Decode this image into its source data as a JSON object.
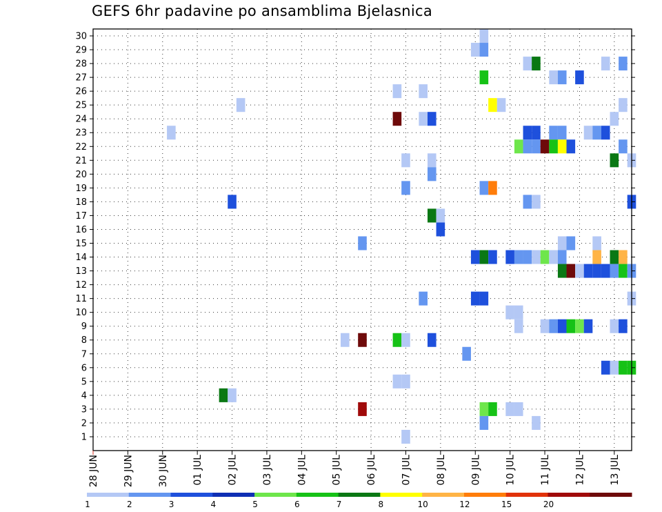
{
  "chart_data": {
    "type": "heatmap",
    "title": "GEFS 6hr padavine po ansamblima Bjelasnica",
    "xlabel": "",
    "ylabel": "",
    "y_ticks": [
      1,
      2,
      3,
      4,
      5,
      6,
      7,
      8,
      9,
      10,
      11,
      12,
      13,
      14,
      15,
      16,
      17,
      18,
      19,
      20,
      21,
      22,
      23,
      24,
      25,
      26,
      27,
      28,
      29,
      30
    ],
    "ylim": [
      0,
      30
    ],
    "xlim_hours": [
      0,
      372
    ],
    "x_ticks": [
      {
        "label": "28 JUN",
        "hour": 0
      },
      {
        "label": "29 JUN",
        "hour": 24
      },
      {
        "label": "30 JUN",
        "hour": 48
      },
      {
        "label": "01 JUL",
        "hour": 72
      },
      {
        "label": "02 JUL",
        "hour": 96
      },
      {
        "label": "03 JUL",
        "hour": 120
      },
      {
        "label": "04 JUL",
        "hour": 144
      },
      {
        "label": "05 JUL",
        "hour": 168
      },
      {
        "label": "06 JUL",
        "hour": 192
      },
      {
        "label": "07 JUL",
        "hour": 216
      },
      {
        "label": "08 JUL",
        "hour": 240
      },
      {
        "label": "09 JUL",
        "hour": 264
      },
      {
        "label": "10 JUL",
        "hour": 288
      },
      {
        "label": "11 JUL",
        "hour": 312
      },
      {
        "label": "12 JUL",
        "hour": 336
      },
      {
        "label": "13 JUL",
        "hour": 360
      }
    ],
    "grid": true,
    "colorbar": {
      "labels": [
        "1",
        "2",
        "3",
        "4",
        "5",
        "6",
        "7",
        "8",
        "10",
        "12",
        "15",
        "20"
      ],
      "colors": [
        "#b4c8f5",
        "#6496f0",
        "#1e50dc",
        "#0f2fb4",
        "#6ee64b",
        "#16c216",
        "#0a7814",
        "#ffff00",
        "#ffb446",
        "#ff7d0a",
        "#e1320a",
        "#a00a0a",
        "#6e0a0a"
      ]
    },
    "cells": [
      {
        "hour": 264,
        "member": 29,
        "level": 1
      },
      {
        "hour": 270,
        "member": 29,
        "level": 2
      },
      {
        "hour": 270,
        "member": 30,
        "level": 1
      },
      {
        "hour": 300,
        "member": 28,
        "level": 1
      },
      {
        "hour": 306,
        "member": 28,
        "level": 7
      },
      {
        "hour": 354,
        "member": 28,
        "level": 1
      },
      {
        "hour": 366,
        "member": 28,
        "level": 2
      },
      {
        "hour": 270,
        "member": 27,
        "level": 6
      },
      {
        "hour": 318,
        "member": 27,
        "level": 1
      },
      {
        "hour": 324,
        "member": 27,
        "level": 2
      },
      {
        "hour": 336,
        "member": 27,
        "level": 3
      },
      {
        "hour": 210,
        "member": 26,
        "level": 1
      },
      {
        "hour": 228,
        "member": 26,
        "level": 1
      },
      {
        "hour": 102,
        "member": 25,
        "level": 1
      },
      {
        "hour": 276,
        "member": 25,
        "level": 8
      },
      {
        "hour": 282,
        "member": 25,
        "level": 1
      },
      {
        "hour": 366,
        "member": 25,
        "level": 1
      },
      {
        "hour": 210,
        "member": 24,
        "level": 13
      },
      {
        "hour": 228,
        "member": 24,
        "level": 1
      },
      {
        "hour": 234,
        "member": 24,
        "level": 3
      },
      {
        "hour": 360,
        "member": 24,
        "level": 1
      },
      {
        "hour": 54,
        "member": 23,
        "level": 1
      },
      {
        "hour": 300,
        "member": 23,
        "level": 3
      },
      {
        "hour": 306,
        "member": 23,
        "level": 3
      },
      {
        "hour": 318,
        "member": 23,
        "level": 2
      },
      {
        "hour": 324,
        "member": 23,
        "level": 2
      },
      {
        "hour": 342,
        "member": 23,
        "level": 1
      },
      {
        "hour": 348,
        "member": 23,
        "level": 2
      },
      {
        "hour": 354,
        "member": 23,
        "level": 3
      },
      {
        "hour": 294,
        "member": 22,
        "level": 5
      },
      {
        "hour": 300,
        "member": 22,
        "level": 2
      },
      {
        "hour": 306,
        "member": 22,
        "level": 2
      },
      {
        "hour": 312,
        "member": 22,
        "level": 13
      },
      {
        "hour": 318,
        "member": 22,
        "level": 6
      },
      {
        "hour": 324,
        "member": 22,
        "level": 8
      },
      {
        "hour": 330,
        "member": 22,
        "level": 3
      },
      {
        "hour": 366,
        "member": 22,
        "level": 2
      },
      {
        "hour": 216,
        "member": 21,
        "level": 1
      },
      {
        "hour": 234,
        "member": 21,
        "level": 1
      },
      {
        "hour": 360,
        "member": 21,
        "level": 7
      },
      {
        "hour": 372,
        "member": 21,
        "level": 1
      },
      {
        "hour": 234,
        "member": 20,
        "level": 2
      },
      {
        "hour": 216,
        "member": 19,
        "level": 2
      },
      {
        "hour": 270,
        "member": 19,
        "level": 2
      },
      {
        "hour": 276,
        "member": 19,
        "level": 10
      },
      {
        "hour": 96,
        "member": 18,
        "level": 3
      },
      {
        "hour": 300,
        "member": 18,
        "level": 2
      },
      {
        "hour": 306,
        "member": 18,
        "level": 1
      },
      {
        "hour": 372,
        "member": 18,
        "level": 3
      },
      {
        "hour": 234,
        "member": 17,
        "level": 7
      },
      {
        "hour": 240,
        "member": 17,
        "level": 1
      },
      {
        "hour": 240,
        "member": 16,
        "level": 3
      },
      {
        "hour": 186,
        "member": 15,
        "level": 2
      },
      {
        "hour": 324,
        "member": 15,
        "level": 1
      },
      {
        "hour": 330,
        "member": 15,
        "level": 2
      },
      {
        "hour": 348,
        "member": 15,
        "level": 1
      },
      {
        "hour": 264,
        "member": 14,
        "level": 3
      },
      {
        "hour": 270,
        "member": 14,
        "level": 7
      },
      {
        "hour": 276,
        "member": 14,
        "level": 3
      },
      {
        "hour": 288,
        "member": 14,
        "level": 3
      },
      {
        "hour": 294,
        "member": 14,
        "level": 2
      },
      {
        "hour": 300,
        "member": 14,
        "level": 2
      },
      {
        "hour": 306,
        "member": 14,
        "level": 1
      },
      {
        "hour": 312,
        "member": 14,
        "level": 5
      },
      {
        "hour": 318,
        "member": 14,
        "level": 1
      },
      {
        "hour": 324,
        "member": 14,
        "level": 2
      },
      {
        "hour": 348,
        "member": 14,
        "level": 9
      },
      {
        "hour": 360,
        "member": 14,
        "level": 7
      },
      {
        "hour": 366,
        "member": 14,
        "level": 9
      },
      {
        "hour": 324,
        "member": 13,
        "level": 7
      },
      {
        "hour": 330,
        "member": 13,
        "level": 13
      },
      {
        "hour": 336,
        "member": 13,
        "level": 1
      },
      {
        "hour": 342,
        "member": 13,
        "level": 3
      },
      {
        "hour": 348,
        "member": 13,
        "level": 3
      },
      {
        "hour": 354,
        "member": 13,
        "level": 3
      },
      {
        "hour": 360,
        "member": 13,
        "level": 2
      },
      {
        "hour": 366,
        "member": 13,
        "level": 6
      },
      {
        "hour": 372,
        "member": 13,
        "level": 2
      },
      {
        "hour": 228,
        "member": 11,
        "level": 2
      },
      {
        "hour": 264,
        "member": 11,
        "level": 3
      },
      {
        "hour": 270,
        "member": 11,
        "level": 3
      },
      {
        "hour": 372,
        "member": 11,
        "level": 1
      },
      {
        "hour": 288,
        "member": 10,
        "level": 1
      },
      {
        "hour": 294,
        "member": 10,
        "level": 1
      },
      {
        "hour": 294,
        "member": 9,
        "level": 1
      },
      {
        "hour": 312,
        "member": 9,
        "level": 1
      },
      {
        "hour": 318,
        "member": 9,
        "level": 2
      },
      {
        "hour": 324,
        "member": 9,
        "level": 3
      },
      {
        "hour": 330,
        "member": 9,
        "level": 6
      },
      {
        "hour": 336,
        "member": 9,
        "level": 5
      },
      {
        "hour": 342,
        "member": 9,
        "level": 3
      },
      {
        "hour": 360,
        "member": 9,
        "level": 1
      },
      {
        "hour": 366,
        "member": 9,
        "level": 3
      },
      {
        "hour": 174,
        "member": 8,
        "level": 1
      },
      {
        "hour": 186,
        "member": 8,
        "level": 13
      },
      {
        "hour": 210,
        "member": 8,
        "level": 6
      },
      {
        "hour": 216,
        "member": 8,
        "level": 1
      },
      {
        "hour": 234,
        "member": 8,
        "level": 3
      },
      {
        "hour": 258,
        "member": 7,
        "level": 2
      },
      {
        "hour": 354,
        "member": 6,
        "level": 3
      },
      {
        "hour": 360,
        "member": 6,
        "level": 1
      },
      {
        "hour": 366,
        "member": 6,
        "level": 6
      },
      {
        "hour": 372,
        "member": 6,
        "level": 6
      },
      {
        "hour": 210,
        "member": 5,
        "level": 1
      },
      {
        "hour": 216,
        "member": 5,
        "level": 1
      },
      {
        "hour": 90,
        "member": 4,
        "level": 7
      },
      {
        "hour": 96,
        "member": 4,
        "level": 1
      },
      {
        "hour": 186,
        "member": 3,
        "level": 12
      },
      {
        "hour": 270,
        "member": 3,
        "level": 5
      },
      {
        "hour": 276,
        "member": 3,
        "level": 6
      },
      {
        "hour": 288,
        "member": 3,
        "level": 1
      },
      {
        "hour": 294,
        "member": 3,
        "level": 1
      },
      {
        "hour": 270,
        "member": 2,
        "level": 2
      },
      {
        "hour": 306,
        "member": 2,
        "level": 1
      },
      {
        "hour": 216,
        "member": 1,
        "level": 1
      }
    ]
  }
}
